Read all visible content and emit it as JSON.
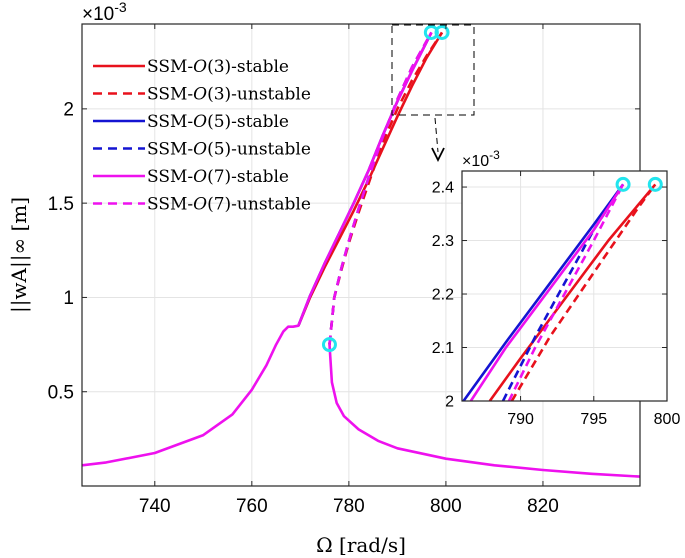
{
  "chart_data": [
    {
      "type": "line",
      "title": "",
      "xlabel": "Ω [rad/s]",
      "ylabel": "||wA||∞ [m]",
      "y_multiplier": "×10",
      "y_multiplier_exp": "-3",
      "xlim": [
        725,
        840
      ],
      "ylim": [
        0.0001,
        2.45
      ],
      "xticks": [
        740,
        760,
        780,
        800,
        820
      ],
      "yticks": [
        0.5,
        1,
        1.5,
        2
      ],
      "xtick_labels": [
        "740",
        "760",
        "780",
        "800",
        "820"
      ],
      "ytick_labels": [
        "0.5",
        "1",
        "1.5",
        "2"
      ],
      "grid": true,
      "legend_position": "top-left",
      "series": [
        {
          "name": "SSM-O(3)-stable",
          "color": "#e8111c",
          "style": "solid",
          "x": [
            769.6,
            772,
            775,
            778,
            781,
            784,
            787,
            790,
            793,
            796,
            799.2
          ],
          "y": [
            0.85,
            1.0,
            1.16,
            1.31,
            1.46,
            1.62,
            1.79,
            1.96,
            2.12,
            2.27,
            2.405
          ]
        },
        {
          "name": "SSM-O(3)-unstable",
          "color": "#e8111c",
          "style": "dashed",
          "x": [
            776.0,
            777,
            778.5,
            780,
            782,
            784,
            787,
            790,
            793,
            796,
            799.2
          ],
          "y": [
            0.75,
            1.0,
            1.15,
            1.29,
            1.45,
            1.6,
            1.82,
            2.0,
            2.15,
            2.28,
            2.405
          ]
        },
        {
          "name": "SSM-O(5)-stable",
          "color": "#1414d2",
          "style": "solid",
          "x": [
            769.6,
            772,
            775,
            778,
            781,
            784,
            787,
            790,
            793,
            797.0
          ],
          "y": [
            0.85,
            1.01,
            1.18,
            1.34,
            1.5,
            1.67,
            1.86,
            2.04,
            2.2,
            2.405
          ]
        },
        {
          "name": "SSM-O(5)-unstable",
          "color": "#1414d2",
          "style": "dashed",
          "x": [
            776.0,
            777,
            778.5,
            780,
            782,
            784,
            787,
            790,
            793,
            797.0
          ],
          "y": [
            0.75,
            1.0,
            1.16,
            1.3,
            1.47,
            1.63,
            1.85,
            2.05,
            2.22,
            2.405
          ]
        },
        {
          "name": "SSM-O(7)-stable",
          "color": "#ee11ee",
          "style": "solid",
          "x": [
            725,
            730,
            740,
            750,
            756,
            760,
            763,
            765,
            766.5,
            767.5,
            768.5,
            769.6,
            772,
            775,
            778,
            781,
            784,
            787,
            790,
            793,
            797.0
          ],
          "y": [
            0.11,
            0.125,
            0.175,
            0.27,
            0.38,
            0.51,
            0.64,
            0.75,
            0.82,
            0.845,
            0.845,
            0.85,
            1.01,
            1.18,
            1.34,
            1.5,
            1.67,
            1.86,
            2.04,
            2.2,
            2.405
          ]
        },
        {
          "name": "SSM-O(7)-unstable",
          "color": "#ee11ee",
          "style": "dashed",
          "x": [
            776.0,
            777,
            778.5,
            780,
            782,
            784,
            787,
            790,
            793,
            797.0
          ],
          "y": [
            0.75,
            1.0,
            1.16,
            1.3,
            1.47,
            1.63,
            1.85,
            2.05,
            2.22,
            2.405
          ]
        },
        {
          "name": "",
          "color": "#ee11ee",
          "style": "solid",
          "x": [
            776.0,
            776.5,
            777.5,
            779,
            782,
            786,
            790,
            800,
            810,
            820,
            830,
            840
          ],
          "y": [
            0.75,
            0.55,
            0.44,
            0.37,
            0.3,
            0.24,
            0.2,
            0.145,
            0.11,
            0.085,
            0.065,
            0.05
          ]
        }
      ],
      "markers": [
        {
          "x": 776.0,
          "y": 0.75
        },
        {
          "x": 797.0,
          "y": 2.405
        },
        {
          "x": 799.2,
          "y": 2.405
        }
      ]
    },
    {
      "type": "line",
      "title": "",
      "xlabel": "",
      "ylabel": "",
      "y_multiplier": "×10",
      "y_multiplier_exp": "-3",
      "xlim": [
        786,
        800
      ],
      "ylim": [
        2.0,
        2.43
      ],
      "xticks": [
        790,
        795,
        800
      ],
      "yticks": [
        2,
        2.1,
        2.2,
        2.3,
        2.4
      ],
      "xtick_labels": [
        "790",
        "795",
        "800"
      ],
      "ytick_labels": [
        "2",
        "2.1",
        "2.2",
        "2.3",
        "2.4"
      ],
      "grid": true,
      "series": [
        {
          "name": "SSM-O(3)-stable",
          "color": "#e8111c",
          "style": "solid",
          "x": [
            787.9,
            790,
            793,
            796,
            799.2
          ],
          "y": [
            2.0,
            2.08,
            2.19,
            2.3,
            2.405
          ]
        },
        {
          "name": "SSM-O(3)-unstable",
          "color": "#e8111c",
          "style": "dashed",
          "x": [
            789.4,
            792,
            795,
            798,
            799.2
          ],
          "y": [
            2.0,
            2.12,
            2.24,
            2.36,
            2.405
          ]
        },
        {
          "name": "SSM-O(5)-stable",
          "color": "#1414d2",
          "style": "solid",
          "x": [
            786.1,
            789,
            792,
            795,
            797.0
          ],
          "y": [
            2.0,
            2.11,
            2.22,
            2.33,
            2.405
          ]
        },
        {
          "name": "SSM-O(5)-unstable",
          "color": "#1414d2",
          "style": "dashed",
          "x": [
            788.8,
            791,
            793,
            795,
            797.0
          ],
          "y": [
            2.0,
            2.12,
            2.22,
            2.32,
            2.405
          ]
        },
        {
          "name": "SSM-O(7)-stable",
          "color": "#ee11ee",
          "style": "solid",
          "x": [
            786.6,
            789,
            792,
            795,
            797.0
          ],
          "y": [
            2.0,
            2.1,
            2.21,
            2.32,
            2.405
          ]
        },
        {
          "name": "SSM-O(7)-unstable",
          "color": "#ee11ee",
          "style": "dashed",
          "x": [
            789.2,
            791,
            793,
            795,
            797.0
          ],
          "y": [
            2.0,
            2.1,
            2.2,
            2.3,
            2.405
          ]
        }
      ],
      "markers": [
        {
          "x": 797.0,
          "y": 2.405
        },
        {
          "x": 799.2,
          "y": 2.405
        }
      ]
    }
  ],
  "legend": [
    {
      "label": "SSM-",
      "order": "3",
      "suffix": "-stable",
      "color": "#e8111c",
      "style": "solid"
    },
    {
      "label": "SSM-",
      "order": "3",
      "suffix": "-unstable",
      "color": "#e8111c",
      "style": "dashed"
    },
    {
      "label": "SSM-",
      "order": "5",
      "suffix": "-stable",
      "color": "#1414d2",
      "style": "solid"
    },
    {
      "label": "SSM-",
      "order": "5",
      "suffix": "-unstable",
      "color": "#1414d2",
      "style": "dashed"
    },
    {
      "label": "SSM-",
      "order": "7",
      "suffix": "-stable",
      "color": "#ee11ee",
      "style": "solid"
    },
    {
      "label": "SSM-",
      "order": "7",
      "suffix": "-unstable",
      "color": "#ee11ee",
      "style": "dashed"
    }
  ],
  "marker_color": "#22e5ee"
}
